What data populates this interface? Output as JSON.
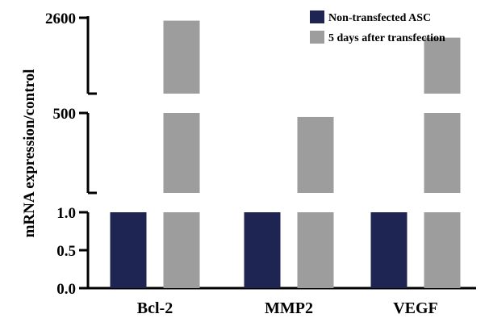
{
  "chart_data": {
    "type": "bar",
    "ylabel": "mRNA expression/control",
    "categories": [
      "Bcl-2",
      "MMP2",
      "VEGF"
    ],
    "series": [
      {
        "name": "Non-transfected ASC",
        "color": "#1e2553",
        "values": [
          1.0,
          1.0,
          1.04
        ]
      },
      {
        "name": "5 days after transfection",
        "color": "#9d9d9d",
        "values": [
          2520,
          480,
          2050
        ]
      }
    ],
    "broken_axis": {
      "segments": [
        {
          "range": [
            0,
            1.0
          ],
          "ticks": [
            "0.0",
            "0.5",
            "1.0"
          ]
        },
        {
          "range": [
            100,
            500
          ],
          "ticks": [
            "500"
          ]
        },
        {
          "range": [
            500,
            2600
          ],
          "ticks": [
            "2600"
          ]
        }
      ]
    },
    "legend_position": "top-right",
    "grid": false
  }
}
